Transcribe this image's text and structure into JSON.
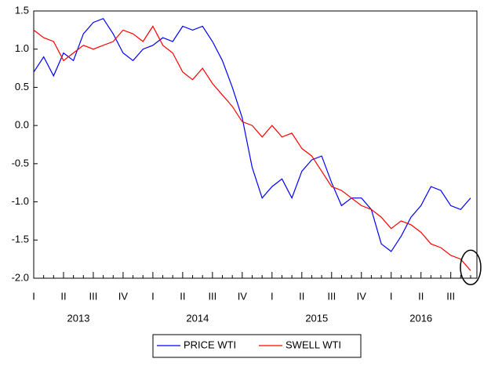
{
  "chart_data": {
    "type": "line",
    "categories": [
      "I",
      null,
      null,
      "II",
      null,
      null,
      "III",
      null,
      null,
      "IV",
      null,
      null,
      "I",
      null,
      null,
      "II",
      null,
      null,
      "III",
      null,
      null,
      "IV",
      null,
      null,
      "I",
      null,
      null,
      "II",
      null,
      null,
      "III",
      null,
      null,
      "IV",
      null,
      null,
      "I",
      null,
      null,
      "II",
      null,
      null,
      "III",
      null,
      null
    ],
    "years": [
      "2013",
      "2014",
      "2015",
      "2016"
    ],
    "series": [
      {
        "name": "PRICE WTI",
        "color": "#0000ff",
        "values": [
          0.7,
          0.9,
          0.65,
          0.95,
          0.85,
          1.2,
          1.35,
          1.4,
          1.2,
          0.95,
          0.85,
          1.0,
          1.05,
          1.15,
          1.1,
          1.3,
          1.25,
          1.3,
          1.1,
          0.85,
          0.5,
          0.1,
          -0.55,
          -0.95,
          -0.8,
          -0.7,
          -0.95,
          -0.6,
          -0.45,
          -0.4,
          -0.75,
          -1.05,
          -0.95,
          -0.95,
          -1.1,
          -1.55,
          -1.65,
          -1.45,
          -1.2,
          -1.05,
          -0.8,
          -0.85,
          -1.05,
          -1.1,
          -0.95
        ]
      },
      {
        "name": "SWELL WTI",
        "color": "#ff0000",
        "values": [
          1.25,
          1.15,
          1.1,
          0.85,
          0.95,
          1.05,
          1.0,
          1.05,
          1.1,
          1.25,
          1.2,
          1.1,
          1.3,
          1.05,
          0.95,
          0.7,
          0.6,
          0.75,
          0.55,
          0.4,
          0.25,
          0.05,
          0.0,
          -0.15,
          0.0,
          -0.15,
          -0.1,
          -0.3,
          -0.4,
          -0.6,
          -0.8,
          -0.85,
          -0.95,
          -1.05,
          -1.1,
          -1.2,
          -1.35,
          -1.25,
          -1.3,
          -1.4,
          -1.55,
          -1.6,
          -1.7,
          -1.75,
          -1.9
        ]
      }
    ],
    "ylim": [
      -2.0,
      1.5
    ],
    "yticks": [
      {
        "value": -2,
        "label": "-2.0"
      },
      -1.5,
      {
        "value": -1,
        "label": "-1.0"
      },
      -0.5,
      {
        "value": 0,
        "label": "0.0"
      },
      0.5,
      {
        "value": 1,
        "label": "1.0"
      },
      1.5
    ]
  }
}
